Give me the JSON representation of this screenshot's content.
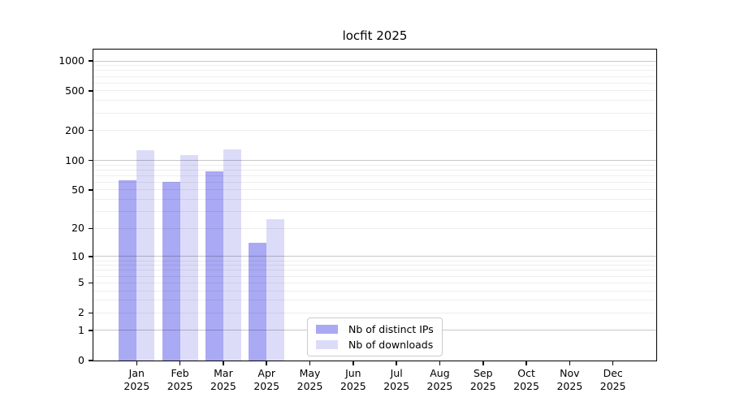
{
  "page_title": "locfit 2025",
  "chart_data": {
    "type": "bar",
    "title": "locfit 2025",
    "xlabel": "",
    "ylabel": "",
    "y_scale": "log10(1+x)",
    "ylim": [
      0,
      1300
    ],
    "grid": true,
    "legend_position": "lower center inside plot",
    "categories": [
      {
        "month": "Jan",
        "year": "2025"
      },
      {
        "month": "Feb",
        "year": "2025"
      },
      {
        "month": "Mar",
        "year": "2025"
      },
      {
        "month": "Apr",
        "year": "2025"
      },
      {
        "month": "May",
        "year": "2025"
      },
      {
        "month": "Jun",
        "year": "2025"
      },
      {
        "month": "Jul",
        "year": "2025"
      },
      {
        "month": "Aug",
        "year": "2025"
      },
      {
        "month": "Sep",
        "year": "2025"
      },
      {
        "month": "Oct",
        "year": "2025"
      },
      {
        "month": "Nov",
        "year": "2025"
      },
      {
        "month": "Dec",
        "year": "2025"
      }
    ],
    "series": [
      {
        "name": "Nb of distinct IPs",
        "color": "#a9a9f4",
        "values": [
          63,
          61,
          77,
          14,
          0,
          0,
          0,
          0,
          0,
          0,
          0,
          0
        ]
      },
      {
        "name": "Nb of downloads",
        "color": "#dcdcf9",
        "values": [
          126,
          114,
          129,
          25,
          0,
          0,
          0,
          0,
          0,
          0,
          0,
          0
        ]
      }
    ],
    "y_ticks": [
      1000,
      500,
      200,
      100,
      50,
      20,
      10,
      5,
      2,
      1,
      0
    ],
    "y_major_gridlines": [
      1,
      10,
      100,
      1000
    ],
    "y_minor_gridlines": [
      2,
      3,
      4,
      5,
      6,
      7,
      8,
      9,
      20,
      30,
      40,
      50,
      60,
      70,
      80,
      90,
      200,
      300,
      400,
      500,
      600,
      700,
      800,
      900
    ]
  },
  "legend": {
    "items": [
      {
        "label": "Nb of distinct IPs"
      },
      {
        "label": "Nb of downloads"
      }
    ]
  },
  "colors": {
    "distinct_ips_bar": "#a9a9f4",
    "downloads_bar": "#dcdcf9",
    "axis": "#000000",
    "major_grid": "#c9c9c9",
    "minor_grid": "#ececec",
    "legend_border": "#cccccc",
    "background": "#ffffff"
  }
}
